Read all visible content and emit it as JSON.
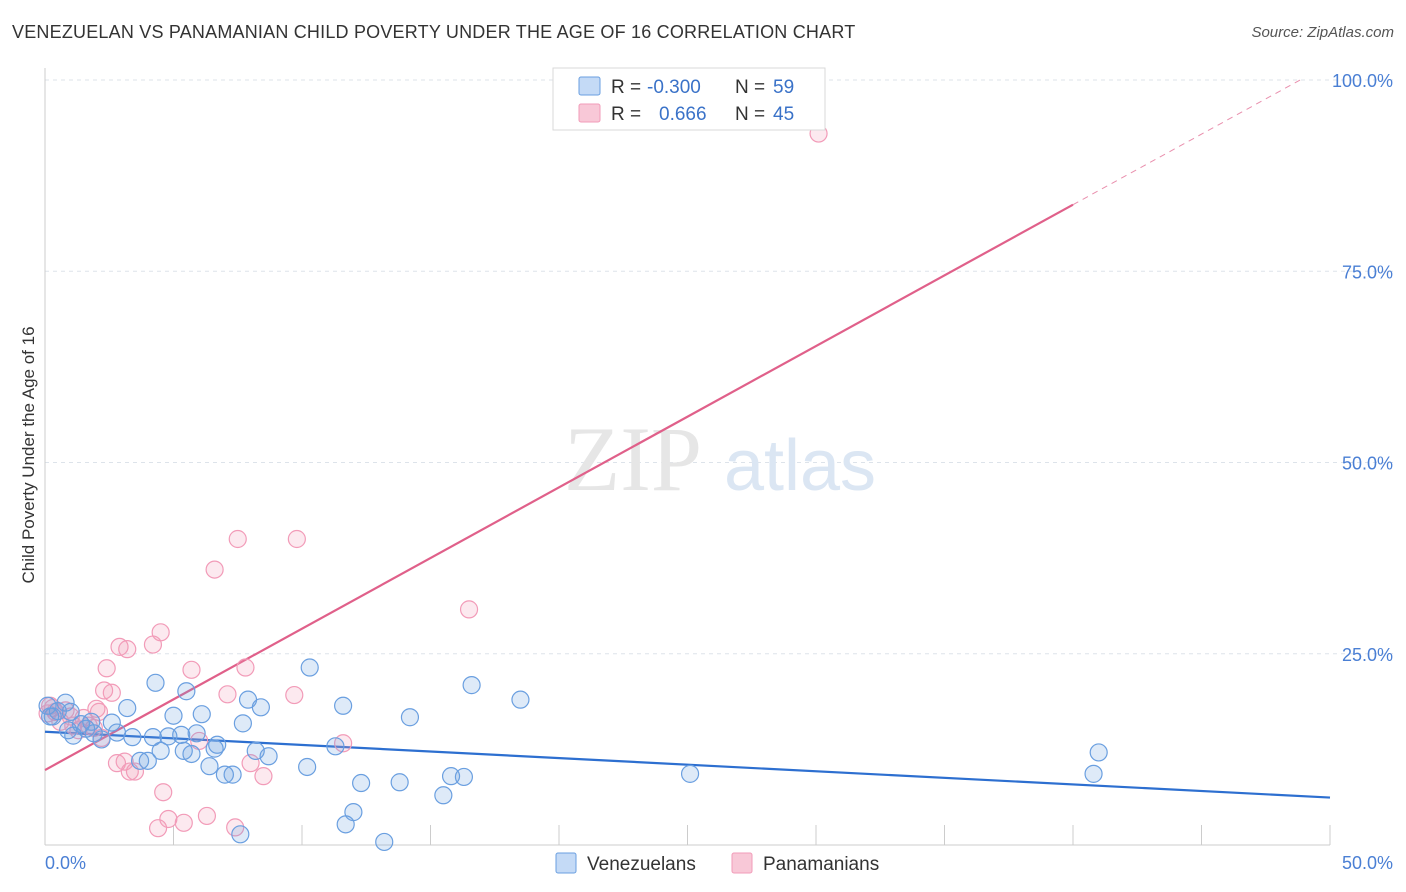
{
  "header": {
    "title": "VENEZUELAN VS PANAMANIAN CHILD POVERTY UNDER THE AGE OF 16 CORRELATION CHART",
    "source": "Source: ZipAtlas.com"
  },
  "watermark": {
    "zip": "ZIP",
    "atlas": "atlas"
  },
  "colors": {
    "venezuelan": "#6a9fe0",
    "venezuelan_line": "#2d6fd0",
    "panamanian": "#f29bb8",
    "panamanian_line": "#e0608a",
    "grid": "#dde3ea",
    "tick_label": "#4a7fd4"
  },
  "legend": {
    "rows": [
      {
        "r_label": "R =",
        "r_value": "-0.300",
        "n_label": "N =",
        "n_value": "59"
      },
      {
        "r_label": "R =",
        "r_value": "0.666",
        "n_label": "N =",
        "n_value": "45"
      }
    ]
  },
  "bottom_legend": [
    "Venezuelans",
    "Panamanians"
  ],
  "chart_data": {
    "type": "scatter",
    "xlabel": "",
    "ylabel": "Child Poverty Under the Age of 16",
    "xlim": [
      0,
      50
    ],
    "ylim": [
      0,
      100
    ],
    "x_tick_labels": [
      "0.0%",
      "50.0%"
    ],
    "y_tick_labels": [
      "25.0%",
      "50.0%",
      "75.0%",
      "100.0%"
    ],
    "y_ticks": [
      25,
      50,
      75,
      100
    ],
    "grid": true,
    "legend_placement": "top-center",
    "series": [
      {
        "name": "Venezuelans",
        "trend": {
          "x": [
            0,
            50
          ],
          "y": [
            14.8,
            6.2
          ]
        },
        "points": [
          [
            0.1,
            18.2
          ],
          [
            0.3,
            16.8
          ],
          [
            0.5,
            17.5
          ],
          [
            0.8,
            18.6
          ],
          [
            0.9,
            15.0
          ],
          [
            1.0,
            17.4
          ],
          [
            1.1,
            14.3
          ],
          [
            1.4,
            15.8
          ],
          [
            1.6,
            15.2
          ],
          [
            1.8,
            16.1
          ],
          [
            1.9,
            14.6
          ],
          [
            2.2,
            13.8
          ],
          [
            2.6,
            16.0
          ],
          [
            2.8,
            14.7
          ],
          [
            3.2,
            17.9
          ],
          [
            3.4,
            14.1
          ],
          [
            3.7,
            11.0
          ],
          [
            4.0,
            11.0
          ],
          [
            4.2,
            14.1
          ],
          [
            4.3,
            21.2
          ],
          [
            4.5,
            12.3
          ],
          [
            4.8,
            14.2
          ],
          [
            5.0,
            16.9
          ],
          [
            5.3,
            14.4
          ],
          [
            5.4,
            12.3
          ],
          [
            5.5,
            20.1
          ],
          [
            5.7,
            11.9
          ],
          [
            5.9,
            14.6
          ],
          [
            6.1,
            17.1
          ],
          [
            6.4,
            10.3
          ],
          [
            6.6,
            12.6
          ],
          [
            6.7,
            13.1
          ],
          [
            7.0,
            9.2
          ],
          [
            7.3,
            9.2
          ],
          [
            7.6,
            1.4
          ],
          [
            7.7,
            15.9
          ],
          [
            7.9,
            19.0
          ],
          [
            8.2,
            12.3
          ],
          [
            8.4,
            18.0
          ],
          [
            8.7,
            11.6
          ],
          [
            10.2,
            10.2
          ],
          [
            10.3,
            23.2
          ],
          [
            11.3,
            12.9
          ],
          [
            11.6,
            18.2
          ],
          [
            11.7,
            2.7
          ],
          [
            12.0,
            4.3
          ],
          [
            12.3,
            8.1
          ],
          [
            13.2,
            0.4
          ],
          [
            13.8,
            8.2
          ],
          [
            14.2,
            16.7
          ],
          [
            15.5,
            6.5
          ],
          [
            15.8,
            9.0
          ],
          [
            16.3,
            8.9
          ],
          [
            16.6,
            20.9
          ],
          [
            18.5,
            19.0
          ],
          [
            25.1,
            9.3
          ],
          [
            40.8,
            9.3
          ],
          [
            41.0,
            12.1
          ],
          [
            0.2,
            16.8
          ]
        ]
      },
      {
        "name": "Panamanians",
        "trend": {
          "x": [
            0,
            40
          ],
          "y": [
            9.8,
            83.7
          ]
        },
        "trend_dashed": {
          "x": [
            40,
            49
          ],
          "y": [
            83.7,
            100.3
          ]
        },
        "points": [
          [
            0.1,
            17.2
          ],
          [
            0.2,
            18.2
          ],
          [
            0.4,
            17.4
          ],
          [
            0.6,
            16.1
          ],
          [
            0.8,
            17.6
          ],
          [
            1.0,
            16.8
          ],
          [
            1.1,
            15.6
          ],
          [
            1.3,
            15.0
          ],
          [
            1.5,
            16.6
          ],
          [
            1.7,
            15.6
          ],
          [
            1.9,
            15.3
          ],
          [
            2.0,
            17.8
          ],
          [
            2.1,
            17.4
          ],
          [
            2.2,
            14.0
          ],
          [
            2.3,
            20.2
          ],
          [
            2.4,
            23.1
          ],
          [
            2.6,
            19.9
          ],
          [
            2.8,
            10.7
          ],
          [
            2.9,
            25.9
          ],
          [
            3.1,
            10.9
          ],
          [
            3.2,
            25.6
          ],
          [
            3.3,
            9.6
          ],
          [
            3.5,
            9.6
          ],
          [
            4.2,
            26.2
          ],
          [
            4.4,
            2.2
          ],
          [
            4.5,
            27.8
          ],
          [
            4.6,
            6.9
          ],
          [
            4.8,
            3.4
          ],
          [
            5.4,
            2.9
          ],
          [
            5.7,
            22.9
          ],
          [
            6.0,
            13.6
          ],
          [
            6.3,
            3.8
          ],
          [
            6.6,
            36.0
          ],
          [
            7.1,
            19.7
          ],
          [
            7.4,
            2.3
          ],
          [
            7.5,
            40.0
          ],
          [
            7.8,
            23.2
          ],
          [
            8.0,
            10.7
          ],
          [
            8.5,
            9.0
          ],
          [
            9.7,
            19.6
          ],
          [
            9.8,
            40.0
          ],
          [
            11.6,
            13.3
          ],
          [
            16.5,
            30.8
          ],
          [
            30.1,
            93.0
          ],
          [
            0.3,
            17.9
          ]
        ]
      }
    ]
  }
}
